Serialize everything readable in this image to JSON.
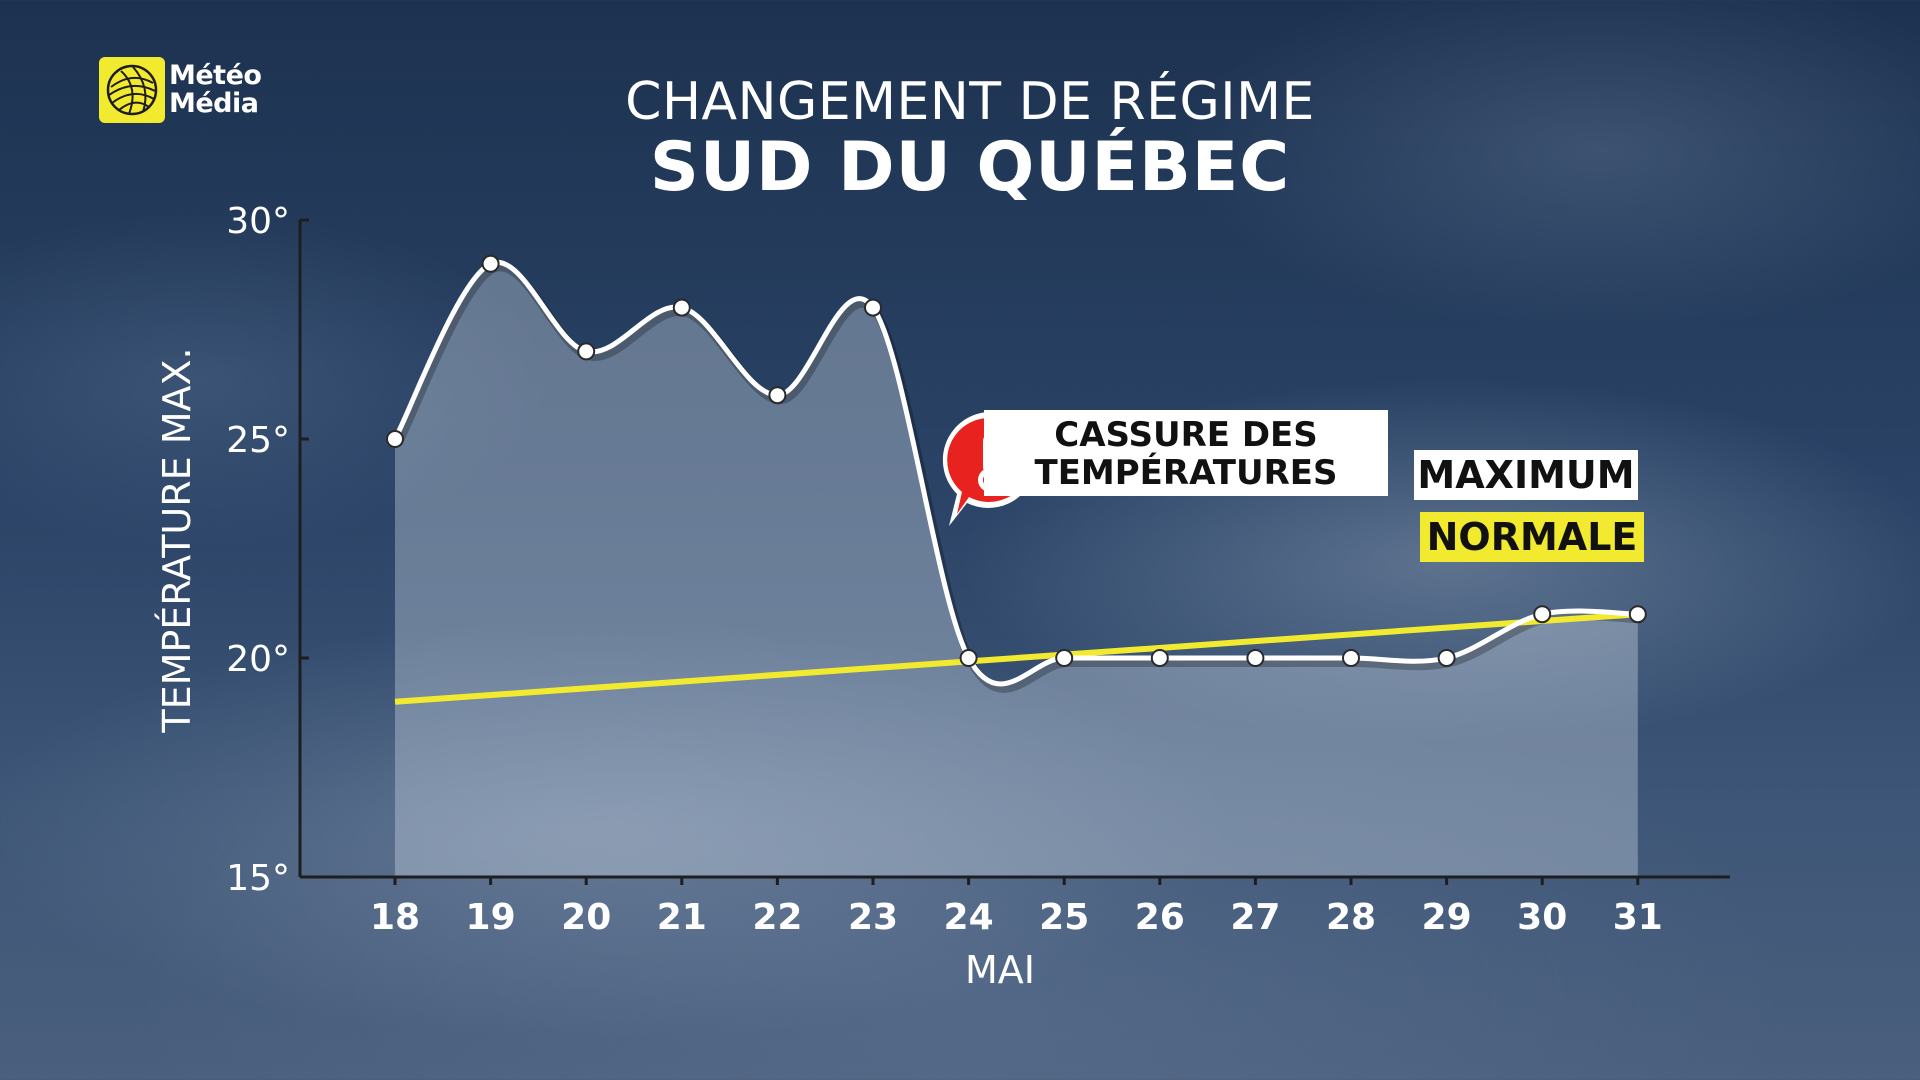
{
  "brand": {
    "line1": "Météo",
    "line2": "Média",
    "logo_icon": "globe-icon",
    "logo_color": "#f2ea2f"
  },
  "header": {
    "title_line1": "CHANGEMENT DE RÉGIME",
    "title_line2": "SUD DU QUÉBEC"
  },
  "callout": {
    "line1": "CASSURE DES",
    "line2": "TEMPÉRATURES",
    "icon": "thermometer-icon",
    "icon_color": "#e8231f"
  },
  "legend": {
    "maximum": "MAXIMUM",
    "normale": "NORMALE",
    "maximum_color": "#ffffff",
    "normale_color": "#f2ea2f"
  },
  "chart_data": {
    "type": "line",
    "xlabel": "MAI",
    "ylabel": "TEMPÉRATURE MAX.",
    "ylim": [
      15,
      30
    ],
    "yticks": [
      15,
      20,
      25,
      30
    ],
    "ytick_labels": [
      "15°",
      "20°",
      "25°",
      "30°"
    ],
    "categories": [
      "18",
      "19",
      "20",
      "21",
      "22",
      "23",
      "24",
      "25",
      "26",
      "27",
      "28",
      "29",
      "30",
      "31"
    ],
    "series": [
      {
        "name": "MAXIMUM",
        "color": "#ffffff",
        "values": [
          25,
          29,
          27,
          28,
          26,
          28,
          20,
          20,
          20,
          20,
          20,
          20,
          21,
          21
        ]
      },
      {
        "name": "NORMALE",
        "color": "#f2ea2f",
        "values": [
          19,
          19.15,
          19.3,
          19.45,
          19.6,
          19.75,
          20,
          20.15,
          20.3,
          20.45,
          20.6,
          20.75,
          20.9,
          21
        ]
      }
    ],
    "grid": false,
    "legend_position": "right"
  }
}
